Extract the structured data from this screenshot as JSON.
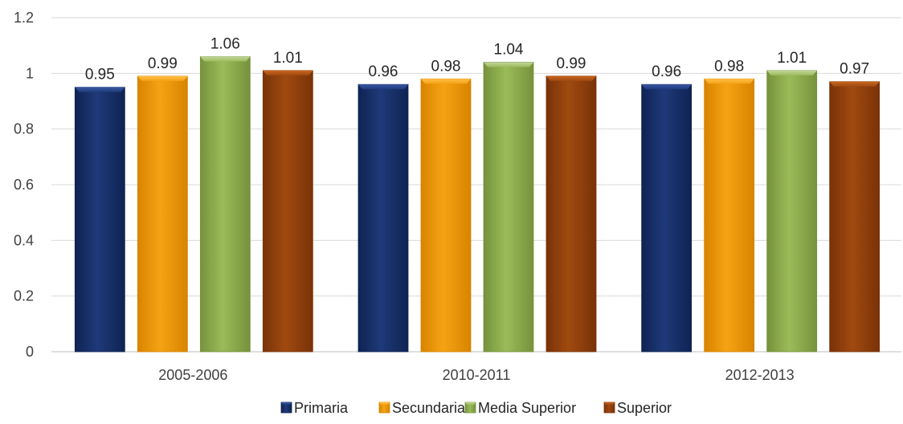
{
  "chart_data": {
    "type": "bar",
    "title": "",
    "xlabel": "",
    "ylabel": "",
    "categories": [
      "2005-2006",
      "2010-2011",
      "2012-2013"
    ],
    "ylim": [
      0,
      1.2
    ],
    "yticks": [
      0,
      0.2,
      0.4,
      0.6,
      0.8,
      1,
      1.2
    ],
    "ytick_labels": [
      "0",
      "0.2",
      "0.4",
      "0.6",
      "0.8",
      "1",
      "1.2"
    ],
    "grid": true,
    "legend_position": "bottom",
    "data_labels": true,
    "series": [
      {
        "name": "Primaria",
        "values": [
          0.95,
          0.96,
          0.96
        ],
        "labels": [
          "0.95",
          "0.96",
          "0.96"
        ],
        "color": "#1f3a7a",
        "color_dark": "#0f2353",
        "color_light": "#3a5aa5"
      },
      {
        "name": "Secundaria",
        "values": [
          0.99,
          0.98,
          0.98
        ],
        "labels": [
          "0.99",
          "0.98",
          "0.98"
        ],
        "color": "#f5a314",
        "color_dark": "#d88400",
        "color_light": "#ffc04a"
      },
      {
        "name": "Media Superior",
        "values": [
          1.06,
          1.04,
          1.01
        ],
        "labels": [
          "1.06",
          "1.04",
          "1.01"
        ],
        "color": "#9bbb59",
        "color_dark": "#76923c",
        "color_light": "#c3d69b"
      },
      {
        "name": "Superior",
        "values": [
          1.01,
          0.99,
          0.97
        ],
        "labels": [
          "1.01",
          "0.99",
          "0.97"
        ],
        "color": "#a04a10",
        "color_dark": "#7a3208",
        "color_light": "#c8651e"
      }
    ]
  }
}
